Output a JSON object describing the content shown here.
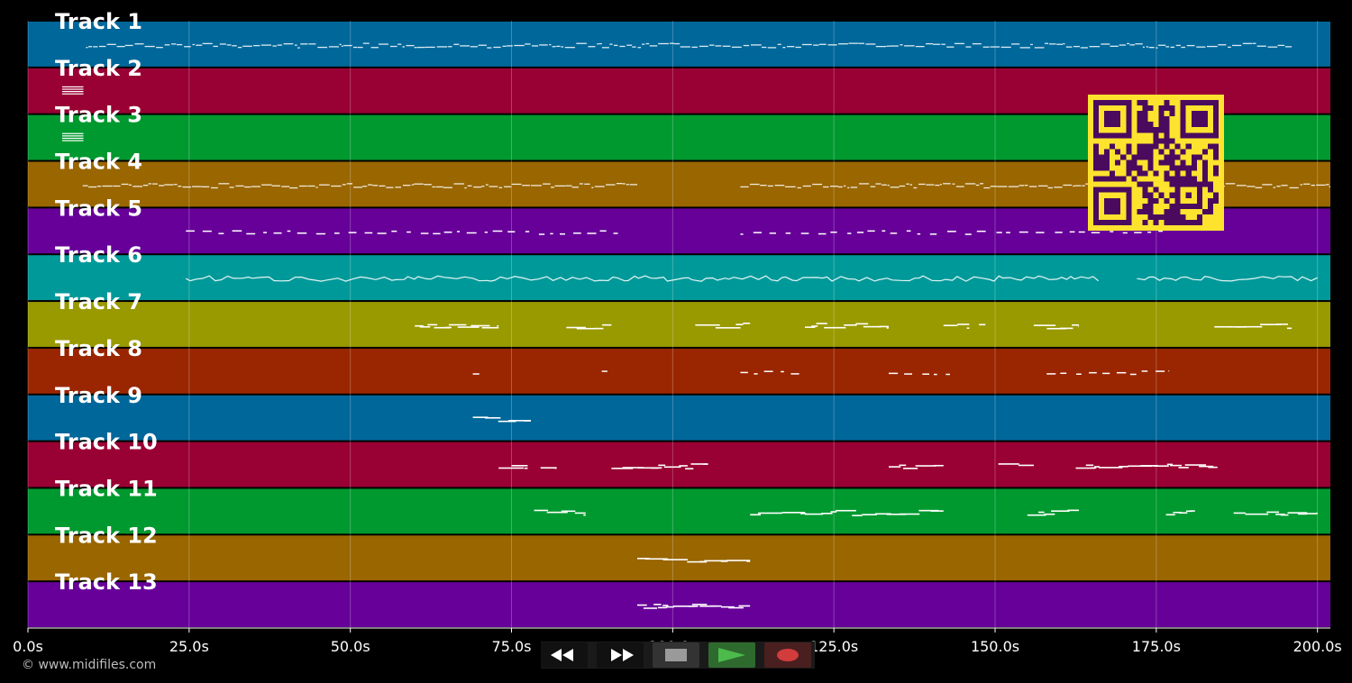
{
  "chart_data": {
    "type": "piano-roll",
    "xlabel": "",
    "xlim": [
      0,
      202
    ],
    "x_ticks": [
      {
        "value": 0,
        "label": "0.0s"
      },
      {
        "value": 25,
        "label": "25.0s"
      },
      {
        "value": 50,
        "label": "50.0s"
      },
      {
        "value": 75,
        "label": "75.0s"
      },
      {
        "value": 100,
        "label": "100.0s"
      },
      {
        "value": 125,
        "label": "125.0s"
      },
      {
        "value": 150,
        "label": "150.0s"
      },
      {
        "value": 175,
        "label": "175.0s"
      },
      {
        "value": 200,
        "label": "200.0s"
      }
    ],
    "grid": true,
    "tracks": [
      {
        "label": "Track 1",
        "color": "#00679a",
        "note_spans": [
          [
            9,
            196
          ]
        ],
        "style": "dense"
      },
      {
        "label": "Track 2",
        "color": "#990033",
        "note_spans": [
          [
            5.3,
            8.6
          ]
        ],
        "style": "chord"
      },
      {
        "label": "Track 3",
        "color": "#00992f",
        "note_spans": [
          [
            5.3,
            8.6
          ]
        ],
        "style": "chord"
      },
      {
        "label": "Track 4",
        "color": "#996600",
        "note_spans": [
          [
            8.5,
            94.5
          ],
          [
            110.5,
            202
          ]
        ],
        "style": "dense"
      },
      {
        "label": "Track 5",
        "color": "#660099",
        "note_spans": [
          [
            24.5,
            91.5
          ],
          [
            110.5,
            176
          ]
        ],
        "style": "dashed"
      },
      {
        "label": "Track 6",
        "color": "#009999",
        "note_spans": [
          [
            24.5,
            166
          ],
          [
            172,
            200
          ]
        ],
        "style": "line"
      },
      {
        "label": "Track 7",
        "color": "#999900",
        "note_spans": [
          [
            60,
            73
          ],
          [
            83.5,
            90.5
          ],
          [
            103.5,
            112
          ],
          [
            120.5,
            133.5
          ],
          [
            142,
            146
          ],
          [
            147.5,
            148.5
          ],
          [
            156,
            163
          ],
          [
            184,
            196
          ]
        ],
        "style": "bars"
      },
      {
        "label": "Track 8",
        "color": "#992600",
        "note_spans": [
          [
            69,
            70
          ],
          [
            89,
            91
          ],
          [
            110.5,
            120
          ],
          [
            133.5,
            143
          ],
          [
            158,
            177
          ]
        ],
        "style": "dashed"
      },
      {
        "label": "Track 9",
        "color": "#00679a",
        "note_spans": [
          [
            69,
            78
          ]
        ],
        "style": "bars"
      },
      {
        "label": "Track 10",
        "color": "#990033",
        "note_spans": [
          [
            73,
            77.5
          ],
          [
            79.5,
            82
          ],
          [
            90.5,
            105.5
          ],
          [
            133.5,
            142
          ],
          [
            150.5,
            156
          ],
          [
            162.5,
            184.5
          ]
        ],
        "style": "bars"
      },
      {
        "label": "Track 11",
        "color": "#00992f",
        "note_spans": [
          [
            78.5,
            86.5
          ],
          [
            112,
            142
          ],
          [
            155,
            163
          ],
          [
            176.5,
            181
          ],
          [
            187,
            200
          ]
        ],
        "style": "bars"
      },
      {
        "label": "Track 12",
        "color": "#996600",
        "note_spans": [
          [
            94.5,
            112
          ]
        ],
        "style": "bars"
      },
      {
        "label": "Track 13",
        "color": "#660099",
        "note_spans": [
          [
            94.5,
            112
          ]
        ],
        "style": "bars"
      }
    ]
  },
  "footer": {
    "copyright": "© www.midifiles.com"
  },
  "transport": {
    "rewind_icon": "rewind-icon",
    "forward_icon": "fast-forward-icon",
    "stop_icon": "stop-icon",
    "play_icon": "play-icon",
    "record_icon": "record-icon",
    "colors": {
      "button_bg": "#111111",
      "stop_bg": "#333333",
      "play_bg": "#2e6a2e",
      "record_bg": "#4a1f1f",
      "play_glyph": "#4cbb4c",
      "record_glyph": "#d23c3c"
    }
  },
  "qr": {
    "icon": "qr-code-icon",
    "fg": "#fde32e",
    "bg": "#4a0a5e"
  }
}
